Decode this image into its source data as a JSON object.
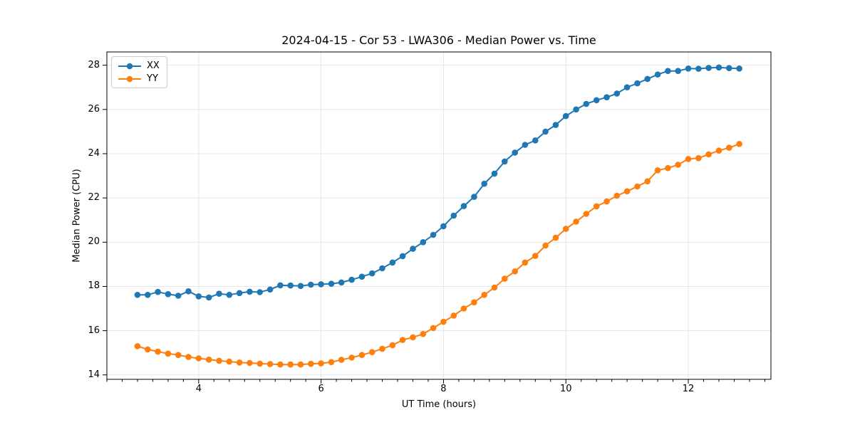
{
  "chart_data": {
    "type": "line",
    "title": "2024-04-15 - Cor 53 - LWA306 - Median Power vs. Time",
    "xlabel": "UT Time (hours)",
    "ylabel": "Median Power (CPU)",
    "xlim": [
      2.5,
      13.35
    ],
    "ylim": [
      13.8,
      28.6
    ],
    "xticks": [
      4,
      6,
      8,
      10,
      12
    ],
    "minor_xtick_step": 0.25,
    "yticks": [
      14,
      16,
      18,
      20,
      22,
      24,
      26,
      28
    ],
    "grid": true,
    "legend_position": "upper left",
    "marker": "circle",
    "x": [
      3.0,
      3.167,
      3.333,
      3.5,
      3.667,
      3.833,
      4.0,
      4.167,
      4.333,
      4.5,
      4.667,
      4.833,
      5.0,
      5.167,
      5.333,
      5.5,
      5.667,
      5.833,
      6.0,
      6.167,
      6.333,
      6.5,
      6.667,
      6.833,
      7.0,
      7.167,
      7.333,
      7.5,
      7.667,
      7.833,
      8.0,
      8.167,
      8.333,
      8.5,
      8.667,
      8.833,
      9.0,
      9.167,
      9.333,
      9.5,
      9.667,
      9.833,
      10.0,
      10.167,
      10.333,
      10.5,
      10.667,
      10.833,
      11.0,
      11.167,
      11.333,
      11.5,
      11.667,
      11.833,
      12.0,
      12.167,
      12.333,
      12.5,
      12.667,
      12.833
    ],
    "series": [
      {
        "name": "XX",
        "color": "#1f77b4",
        "values": [
          17.62,
          17.62,
          17.75,
          17.65,
          17.58,
          17.78,
          17.55,
          17.5,
          17.67,
          17.62,
          17.7,
          17.76,
          17.74,
          17.86,
          18.05,
          18.04,
          18.02,
          18.08,
          18.1,
          18.12,
          18.18,
          18.3,
          18.44,
          18.59,
          18.82,
          19.08,
          19.37,
          19.7,
          20.0,
          20.33,
          20.72,
          21.2,
          21.63,
          22.05,
          22.64,
          23.1,
          23.65,
          24.05,
          24.4,
          24.6,
          25.0,
          25.3,
          25.7,
          26.0,
          26.25,
          26.42,
          26.55,
          26.72,
          27.0,
          27.18,
          27.38,
          27.58,
          27.74,
          27.74,
          27.85,
          27.84,
          27.88,
          27.9,
          27.87,
          27.85
        ]
      },
      {
        "name": "YY",
        "color": "#ff7f0e",
        "values": [
          15.3,
          15.15,
          15.05,
          14.96,
          14.9,
          14.81,
          14.75,
          14.69,
          14.64,
          14.6,
          14.56,
          14.54,
          14.51,
          14.49,
          14.47,
          14.47,
          14.47,
          14.5,
          14.52,
          14.58,
          14.68,
          14.78,
          14.9,
          15.03,
          15.18,
          15.34,
          15.58,
          15.7,
          15.85,
          16.12,
          16.4,
          16.68,
          17.0,
          17.28,
          17.62,
          17.95,
          18.35,
          18.68,
          19.08,
          19.38,
          19.85,
          20.2,
          20.6,
          20.93,
          21.28,
          21.62,
          21.84,
          22.1,
          22.3,
          22.52,
          22.75,
          23.25,
          23.35,
          23.5,
          23.76,
          23.8,
          23.97,
          24.14,
          24.27,
          24.44
        ]
      }
    ]
  },
  "style": {
    "grid_color": "#e6e6e6",
    "axis_color": "#000000",
    "background": "#ffffff",
    "line_width": 2,
    "marker_radius": 4.3
  }
}
